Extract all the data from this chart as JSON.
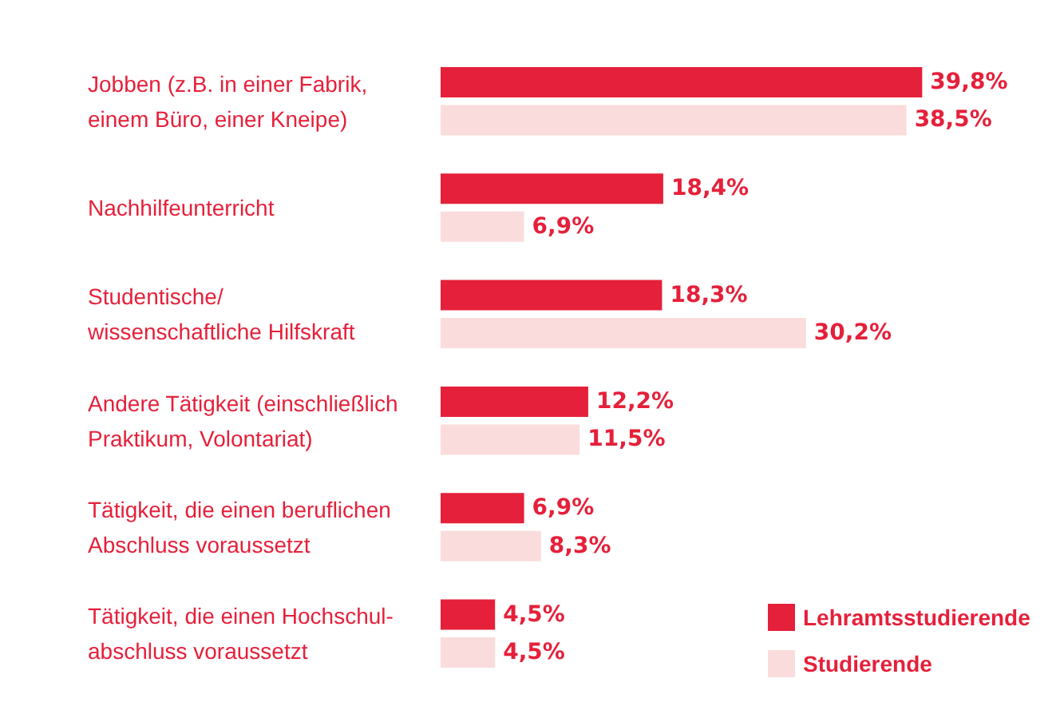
{
  "chart_data": {
    "type": "bar",
    "orientation": "horizontal",
    "categories": [
      "Jobben (z.B. in einer Fabrik,\neinem Büro, einer Kneipe)",
      "Nachhilfeunterricht",
      "Studentische/\nwissenschaftliche Hilfskraft",
      "Andere Tätigkeit (einschließlich\nPraktikum, Volontariat)",
      "Tätigkeit, die einen beruflichen\nAbschluss voraussetzt",
      "Tätigkeit, die einen Hochschul-\nabschluss voraussetzt"
    ],
    "series": [
      {
        "name": "Lehramtsstudierende",
        "color": "#e5203a",
        "values": [
          39.8,
          18.4,
          18.3,
          12.2,
          6.9,
          4.5
        ],
        "value_labels": [
          "39,8%",
          "18,4%",
          "18,3%",
          "12,2%",
          "6,9%",
          "4,5%"
        ]
      },
      {
        "name": "Studierende",
        "color": "#fadcdc",
        "values": [
          38.5,
          6.9,
          30.2,
          11.5,
          8.3,
          4.5
        ],
        "value_labels": [
          "38,5%",
          "6,9%",
          "30,2%",
          "11,5%",
          "8,3%",
          "4,5%"
        ]
      }
    ],
    "legend": "bottom right"
  }
}
